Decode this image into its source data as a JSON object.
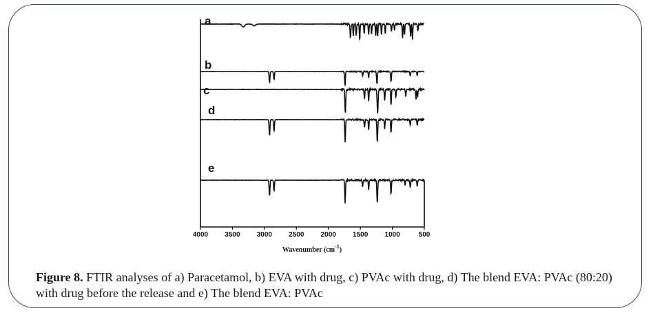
{
  "chart_data": {
    "type": "line",
    "xlabel": "Wavenumber (cm",
    "xlabel_sup": "-1",
    "xlabel_close": ")",
    "x_ticks": [
      4000,
      3500,
      3000,
      2500,
      2000,
      1500,
      1000,
      500
    ],
    "xlim": [
      4000,
      500
    ],
    "axis_reversed": true,
    "grid": false,
    "legend": "none",
    "line_color": "#111111",
    "series": [
      {
        "name": "a",
        "baseline": 0.95,
        "bands": [
          {
            "x": 3330,
            "depth": 0.12,
            "width": 60
          },
          {
            "x": 3160,
            "depth": 0.07,
            "width": 60
          },
          {
            "x": 1655,
            "depth": 0.55,
            "width": 18
          },
          {
            "x": 1610,
            "depth": 0.45,
            "width": 15
          },
          {
            "x": 1565,
            "depth": 0.5,
            "width": 15
          },
          {
            "x": 1510,
            "depth": 0.65,
            "width": 15
          },
          {
            "x": 1440,
            "depth": 0.4,
            "width": 15
          },
          {
            "x": 1370,
            "depth": 0.45,
            "width": 15
          },
          {
            "x": 1325,
            "depth": 0.4,
            "width": 15
          },
          {
            "x": 1260,
            "depth": 0.5,
            "width": 15
          },
          {
            "x": 1230,
            "depth": 0.55,
            "width": 15
          },
          {
            "x": 1170,
            "depth": 0.45,
            "width": 15
          },
          {
            "x": 1110,
            "depth": 0.4,
            "width": 15
          },
          {
            "x": 1015,
            "depth": 0.3,
            "width": 15
          },
          {
            "x": 965,
            "depth": 0.25,
            "width": 15
          },
          {
            "x": 840,
            "depth": 0.55,
            "width": 15
          },
          {
            "x": 810,
            "depth": 0.45,
            "width": 15
          },
          {
            "x": 715,
            "depth": 0.5,
            "width": 15
          },
          {
            "x": 685,
            "depth": 0.65,
            "width": 15
          },
          {
            "x": 600,
            "depth": 0.3,
            "width": 15
          }
        ]
      },
      {
        "name": "b",
        "baseline": 0.95,
        "bands": [
          {
            "x": 2920,
            "depth": 0.75,
            "width": 18
          },
          {
            "x": 2850,
            "depth": 0.55,
            "width": 18
          },
          {
            "x": 1740,
            "depth": 0.95,
            "width": 16
          },
          {
            "x": 1465,
            "depth": 0.3,
            "width": 15
          },
          {
            "x": 1370,
            "depth": 0.4,
            "width": 15
          },
          {
            "x": 1240,
            "depth": 0.85,
            "width": 18
          },
          {
            "x": 1020,
            "depth": 0.7,
            "width": 16
          },
          {
            "x": 720,
            "depth": 0.3,
            "width": 15
          },
          {
            "x": 610,
            "depth": 0.25,
            "width": 15
          }
        ]
      },
      {
        "name": "c",
        "baseline": 0.95,
        "bands": [
          {
            "x": 1735,
            "depth": 1.0,
            "width": 18
          },
          {
            "x": 1435,
            "depth": 0.4,
            "width": 15
          },
          {
            "x": 1370,
            "depth": 0.5,
            "width": 15
          },
          {
            "x": 1230,
            "depth": 1.0,
            "width": 20
          },
          {
            "x": 1120,
            "depth": 0.45,
            "width": 15
          },
          {
            "x": 1020,
            "depth": 0.65,
            "width": 15
          },
          {
            "x": 945,
            "depth": 0.35,
            "width": 15
          },
          {
            "x": 790,
            "depth": 0.3,
            "width": 15
          },
          {
            "x": 630,
            "depth": 0.4,
            "width": 15
          },
          {
            "x": 605,
            "depth": 0.3,
            "width": 15
          }
        ]
      },
      {
        "name": "d",
        "baseline": 0.95,
        "bands": [
          {
            "x": 2920,
            "depth": 0.7,
            "width": 18
          },
          {
            "x": 2850,
            "depth": 0.5,
            "width": 18
          },
          {
            "x": 1738,
            "depth": 0.95,
            "width": 16
          },
          {
            "x": 1435,
            "depth": 0.35,
            "width": 15
          },
          {
            "x": 1370,
            "depth": 0.45,
            "width": 15
          },
          {
            "x": 1235,
            "depth": 1.0,
            "width": 18
          },
          {
            "x": 1120,
            "depth": 0.4,
            "width": 15
          },
          {
            "x": 1020,
            "depth": 0.6,
            "width": 15
          },
          {
            "x": 720,
            "depth": 0.25,
            "width": 15
          },
          {
            "x": 610,
            "depth": 0.25,
            "width": 15
          }
        ]
      },
      {
        "name": "e",
        "baseline": 0.95,
        "bands": [
          {
            "x": 2920,
            "depth": 0.65,
            "width": 18
          },
          {
            "x": 2850,
            "depth": 0.45,
            "width": 18
          },
          {
            "x": 1738,
            "depth": 0.95,
            "width": 16
          },
          {
            "x": 1465,
            "depth": 0.3,
            "width": 15
          },
          {
            "x": 1370,
            "depth": 0.4,
            "width": 15
          },
          {
            "x": 1235,
            "depth": 0.95,
            "width": 18
          },
          {
            "x": 1020,
            "depth": 0.6,
            "width": 16
          },
          {
            "x": 800,
            "depth": 0.2,
            "width": 15
          },
          {
            "x": 720,
            "depth": 0.3,
            "width": 15
          },
          {
            "x": 610,
            "depth": 0.25,
            "width": 15
          }
        ]
      }
    ]
  },
  "caption": {
    "figure_label": "Figure 8.",
    "text": " FTIR analyses of a) Paracetamol, b) EVA with drug, c) PVAc with drug, d) The blend EVA: PVAc (80:20) with drug before the release and e) The blend EVA: PVAc"
  }
}
